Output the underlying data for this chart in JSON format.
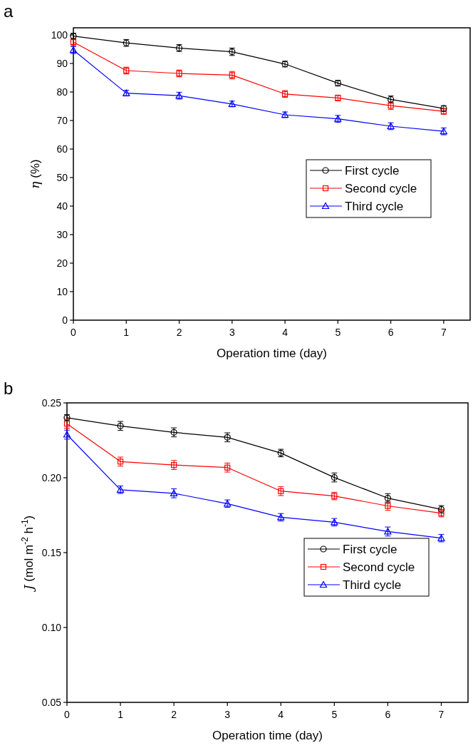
{
  "chart_data": [
    {
      "type": "line",
      "title": "a",
      "xlabel": "Operation time (day)",
      "ylabel": "η (%)",
      "x": [
        0,
        1,
        2,
        3,
        4,
        5,
        6,
        7
      ],
      "xlim": [
        0,
        7.5
      ],
      "xticks": [
        0,
        1,
        2,
        3,
        4,
        5,
        6,
        7
      ],
      "ylim": [
        0,
        102.5
      ],
      "yticks": [
        0,
        10,
        20,
        30,
        40,
        50,
        60,
        70,
        80,
        90,
        100
      ],
      "legend": "right",
      "grid": false,
      "line_style": "solid",
      "series": [
        {
          "name": "First cycle",
          "color": "#000000",
          "marker": "circle",
          "values": [
            99.6,
            97.2,
            95.4,
            94.1,
            89.8,
            83.1,
            77.4,
            74.2
          ],
          "errors": [
            1.0,
            1.2,
            1.2,
            1.3,
            1.0,
            1.0,
            1.2,
            1.0
          ]
        },
        {
          "name": "Second cycle",
          "color": "#ff0000",
          "marker": "square",
          "values": [
            97.5,
            87.5,
            86.5,
            85.9,
            79.3,
            77.9,
            75.2,
            73.2
          ],
          "errors": [
            1.2,
            1.2,
            1.2,
            1.3,
            1.2,
            1.0,
            1.3,
            1.0
          ]
        },
        {
          "name": "Third cycle",
          "color": "#0000ff",
          "marker": "triangle",
          "values": [
            94.7,
            79.6,
            78.7,
            75.8,
            72.0,
            70.6,
            68.0,
            66.2
          ],
          "errors": [
            1.2,
            1.0,
            1.2,
            1.0,
            1.0,
            1.2,
            1.2,
            1.2
          ]
        }
      ]
    },
    {
      "type": "line",
      "title": "b",
      "xlabel": "Operation time (day)",
      "ylabel": "J (mol m$^{-2}$ h$^{-1}$)",
      "x": [
        0,
        1,
        2,
        3,
        4,
        5,
        6,
        7
      ],
      "xlim": [
        0,
        7.5
      ],
      "xticks": [
        0,
        1,
        2,
        3,
        4,
        5,
        6,
        7
      ],
      "ylim": [
        0.05,
        0.25
      ],
      "yticks": [
        {
          "value": 0.05,
          "label": "0.05"
        },
        {
          "value": 0.1,
          "label": "0.10"
        },
        {
          "value": 0.15,
          "label": "0.15"
        },
        {
          "value": 0.2,
          "label": "0.20"
        },
        {
          "value": 0.25,
          "label": "0.25"
        }
      ],
      "legend": "right",
      "grid": false,
      "line_style": "solid",
      "series": [
        {
          "name": "First cycle",
          "color": "#000000",
          "marker": "circle",
          "values": [
            0.2401,
            0.2346,
            0.2303,
            0.227,
            0.2165,
            0.2002,
            0.1864,
            0.1789
          ],
          "errors": [
            0.002,
            0.003,
            0.003,
            0.003,
            0.0025,
            0.003,
            0.003,
            0.0025
          ]
        },
        {
          "name": "Second cycle",
          "color": "#ff0000",
          "marker": "square",
          "values": [
            0.2361,
            0.2108,
            0.2085,
            0.2068,
            0.1911,
            0.1878,
            0.1812,
            0.1764
          ],
          "errors": [
            0.003,
            0.003,
            0.003,
            0.003,
            0.003,
            0.0025,
            0.003,
            0.0025
          ]
        },
        {
          "name": "Third cycle",
          "color": "#0000ff",
          "marker": "triangle",
          "values": [
            0.2288,
            0.192,
            0.1896,
            0.1827,
            0.1736,
            0.1703,
            0.1641,
            0.1597
          ],
          "errors": [
            0.003,
            0.0025,
            0.003,
            0.0025,
            0.0025,
            0.0025,
            0.003,
            0.0025
          ]
        }
      ]
    }
  ]
}
